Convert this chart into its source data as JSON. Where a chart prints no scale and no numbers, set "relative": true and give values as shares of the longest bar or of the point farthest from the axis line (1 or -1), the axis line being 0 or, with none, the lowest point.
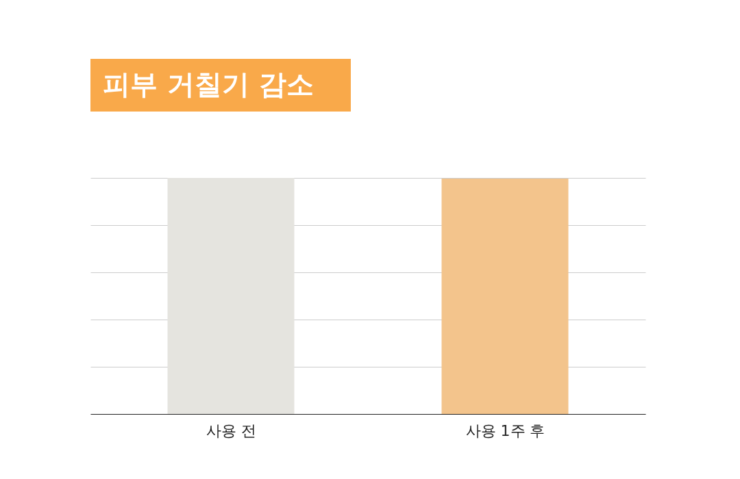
{
  "chart_data": {
    "type": "bar",
    "title": "피부 거칠기 감소",
    "categories": [
      "사용 전",
      "사용 1주 후"
    ],
    "values": [
      1,
      0.997
    ],
    "colors": [
      "#e5e4df",
      "#f3c48c"
    ],
    "relative": true,
    "grid": "y"
  }
}
